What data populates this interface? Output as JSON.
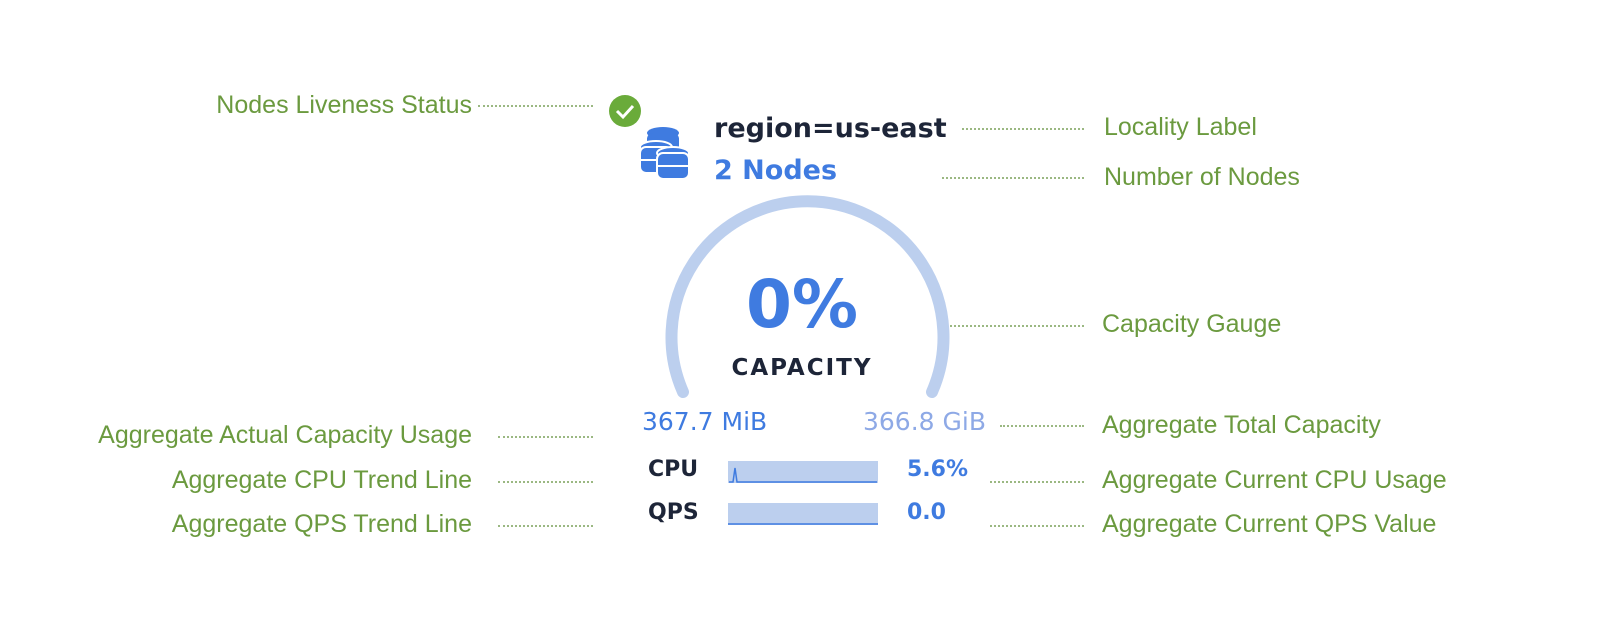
{
  "widget": {
    "locality": "region=us-east",
    "nodes": "2 Nodes",
    "capacity_percent": "0%",
    "capacity_label": "CAPACITY",
    "used": "367.7 MiB",
    "total": "366.8 GiB",
    "cpu_label": "CPU",
    "cpu_value": "5.6%",
    "qps_label": "QPS",
    "qps_value": "0.0",
    "liveness": "live",
    "colors": {
      "blue": "#3f7be0",
      "gauge": "#bccfee",
      "check": "#6aab3a",
      "label": "#6b9a3f"
    }
  },
  "annotations": {
    "liveness": "Nodes Liveness Status",
    "locality": "Locality Label",
    "nodes": "Number of Nodes",
    "gauge": "Capacity Gauge",
    "usage": "Aggregate Actual Capacity Usage",
    "total": "Aggregate Total Capacity",
    "cpu_trend": "Aggregate CPU Trend Line",
    "cpu_current": "Aggregate Current CPU Usage",
    "qps_trend": "Aggregate QPS Trend Line",
    "qps_current": "Aggregate Current QPS Value"
  }
}
